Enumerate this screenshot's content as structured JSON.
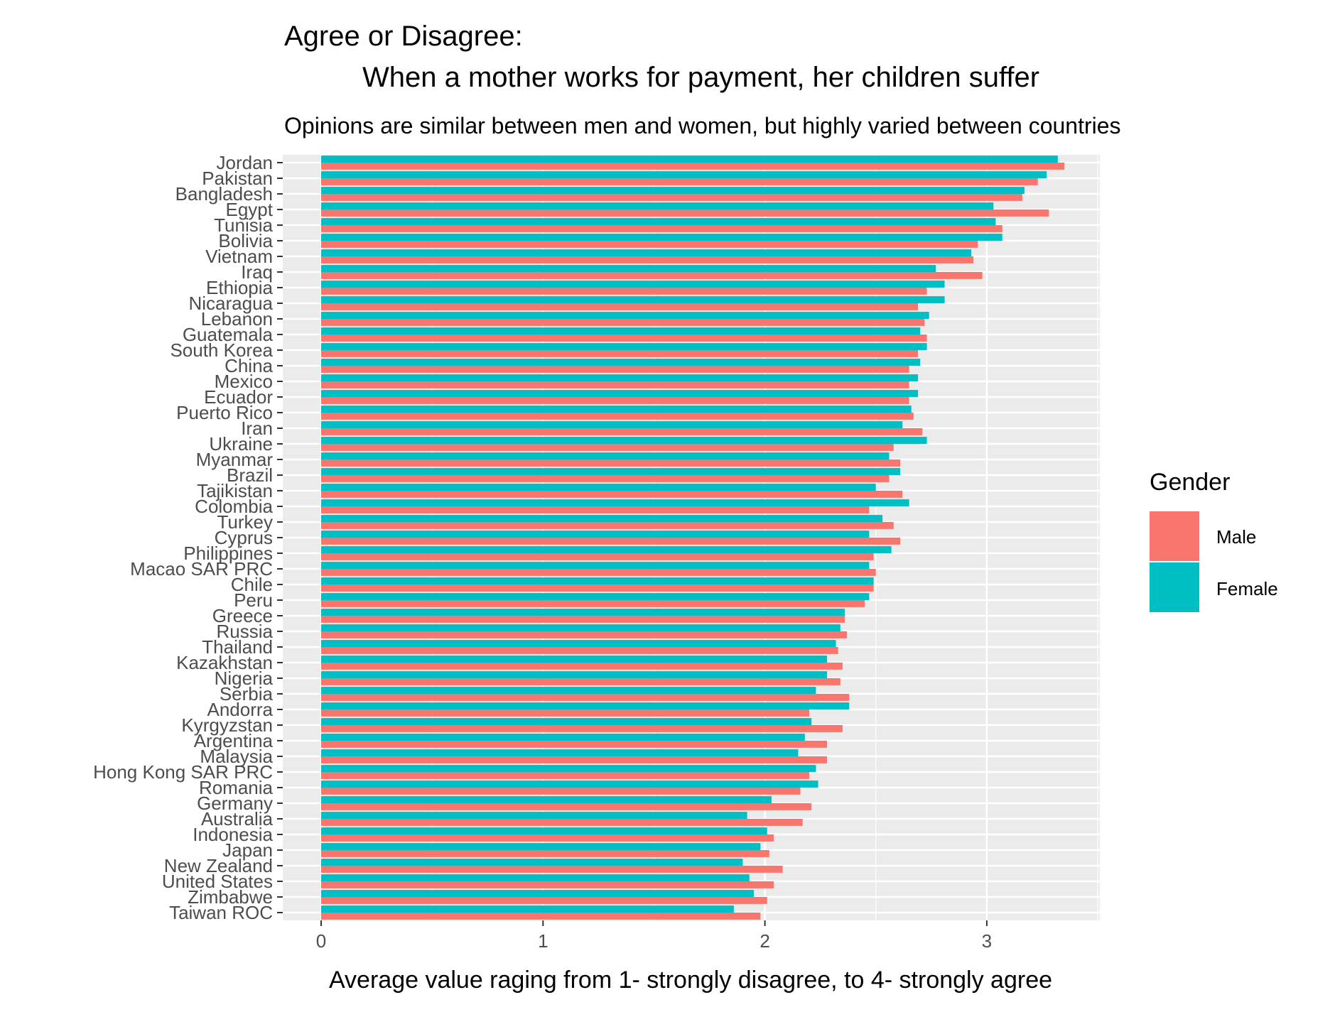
{
  "chart_data": {
    "type": "bar",
    "orientation": "horizontal",
    "title_line1": "Agree or Disagree:",
    "title_line2": "When a mother works for payment, her children suffer",
    "subtitle": "Opinions are similar between men and women, but highly varied between countries",
    "xlabel": "Average value raging from 1- strongly disagree, to 4- strongly agree",
    "ylabel": "",
    "xlim": [
      0,
      3.5
    ],
    "x_ticks": [
      0,
      1,
      2,
      3
    ],
    "x_tick_labels": [
      "0",
      "1",
      "2",
      "3"
    ],
    "grid": true,
    "legend": {
      "title": "Gender",
      "position": "right"
    },
    "categories": [
      "Jordan",
      "Pakistan",
      "Bangladesh",
      "Egypt",
      "Tunisia",
      "Bolivia",
      "Vietnam",
      "Iraq",
      "Ethiopia",
      "Nicaragua",
      "Lebanon",
      "Guatemala",
      "South Korea",
      "China",
      "Mexico",
      "Ecuador",
      "Puerto Rico",
      "Iran",
      "Ukraine",
      "Myanmar",
      "Brazil",
      "Tajikistan",
      "Colombia",
      "Turkey",
      "Cyprus",
      "Philippines",
      "Macao SAR PRC",
      "Chile",
      "Peru",
      "Greece",
      "Russia",
      "Thailand",
      "Kazakhstan",
      "Nigeria",
      "Serbia",
      "Andorra",
      "Kyrgyzstan",
      "Argentina",
      "Malaysia",
      "Hong Kong SAR PRC",
      "Romania",
      "Germany",
      "Australia",
      "Indonesia",
      "Japan",
      "New Zealand",
      "United States",
      "Zimbabwe",
      "Taiwan ROC"
    ],
    "series": [
      {
        "name": "Male",
        "color": "#F8766D",
        "values": [
          3.35,
          3.23,
          3.16,
          3.28,
          3.07,
          2.96,
          2.94,
          2.98,
          2.73,
          2.69,
          2.72,
          2.73,
          2.69,
          2.65,
          2.65,
          2.65,
          2.67,
          2.71,
          2.58,
          2.61,
          2.56,
          2.62,
          2.47,
          2.58,
          2.61,
          2.49,
          2.5,
          2.49,
          2.45,
          2.36,
          2.37,
          2.33,
          2.35,
          2.34,
          2.38,
          2.2,
          2.35,
          2.28,
          2.28,
          2.2,
          2.16,
          2.21,
          2.17,
          2.04,
          2.02,
          2.08,
          2.04,
          2.01,
          1.98
        ]
      },
      {
        "name": "Female",
        "color": "#00BFC4",
        "values": [
          3.32,
          3.27,
          3.17,
          3.03,
          3.04,
          3.07,
          2.93,
          2.77,
          2.81,
          2.81,
          2.74,
          2.7,
          2.73,
          2.7,
          2.69,
          2.69,
          2.66,
          2.62,
          2.73,
          2.56,
          2.61,
          2.5,
          2.65,
          2.53,
          2.47,
          2.57,
          2.47,
          2.49,
          2.47,
          2.36,
          2.34,
          2.32,
          2.28,
          2.28,
          2.23,
          2.38,
          2.21,
          2.18,
          2.15,
          2.23,
          2.24,
          2.03,
          1.92,
          2.01,
          1.98,
          1.9,
          1.93,
          1.95,
          1.86
        ]
      }
    ]
  }
}
